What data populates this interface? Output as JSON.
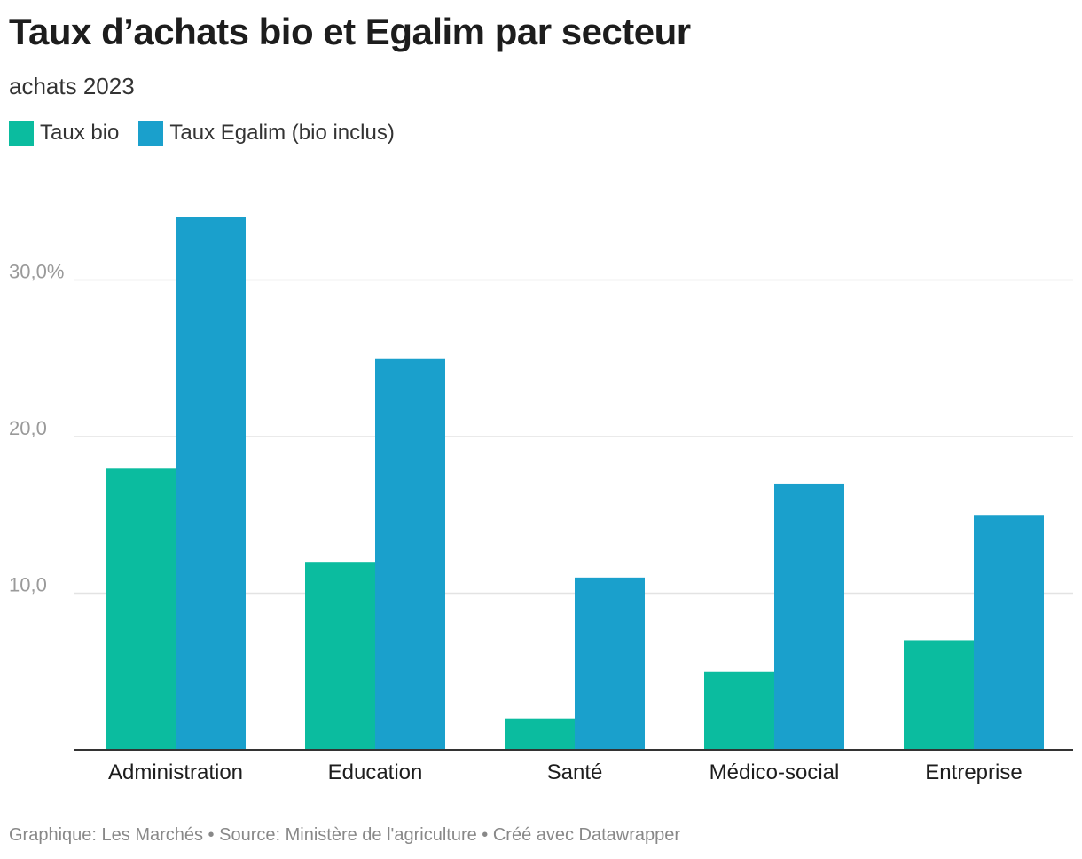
{
  "header": {
    "title": "Taux d’achats bio et Egalim par secteur",
    "subtitle": "achats 2023"
  },
  "legend": [
    {
      "label": "Taux bio",
      "color": "#0bbc9f"
    },
    {
      "label": "Taux Egalim (bio inclus)",
      "color": "#1aa0cc"
    }
  ],
  "chart_data": {
    "type": "bar",
    "title": "Taux d’achats bio et Egalim par secteur",
    "subtitle": "achats 2023",
    "categories": [
      "Administration",
      "Education",
      "Santé",
      "Médico-social",
      "Entreprise"
    ],
    "series": [
      {
        "name": "Taux bio",
        "color": "#0bbc9f",
        "values": [
          18,
          12,
          2,
          5,
          7
        ]
      },
      {
        "name": "Taux Egalim (bio inclus)",
        "color": "#1aa0cc",
        "values": [
          34,
          25,
          11,
          17,
          15
        ]
      }
    ],
    "yticks": [
      {
        "value": 10,
        "label": "10,0"
      },
      {
        "value": 20,
        "label": "20,0"
      },
      {
        "value": 30,
        "label": "30,0%"
      }
    ],
    "ylim": [
      0,
      34
    ],
    "grid": true,
    "legend_position": "top-left"
  },
  "footer": {
    "text": "Graphique: Les Marchés • Source: Ministère de l'agriculture • Créé avec Datawrapper"
  }
}
